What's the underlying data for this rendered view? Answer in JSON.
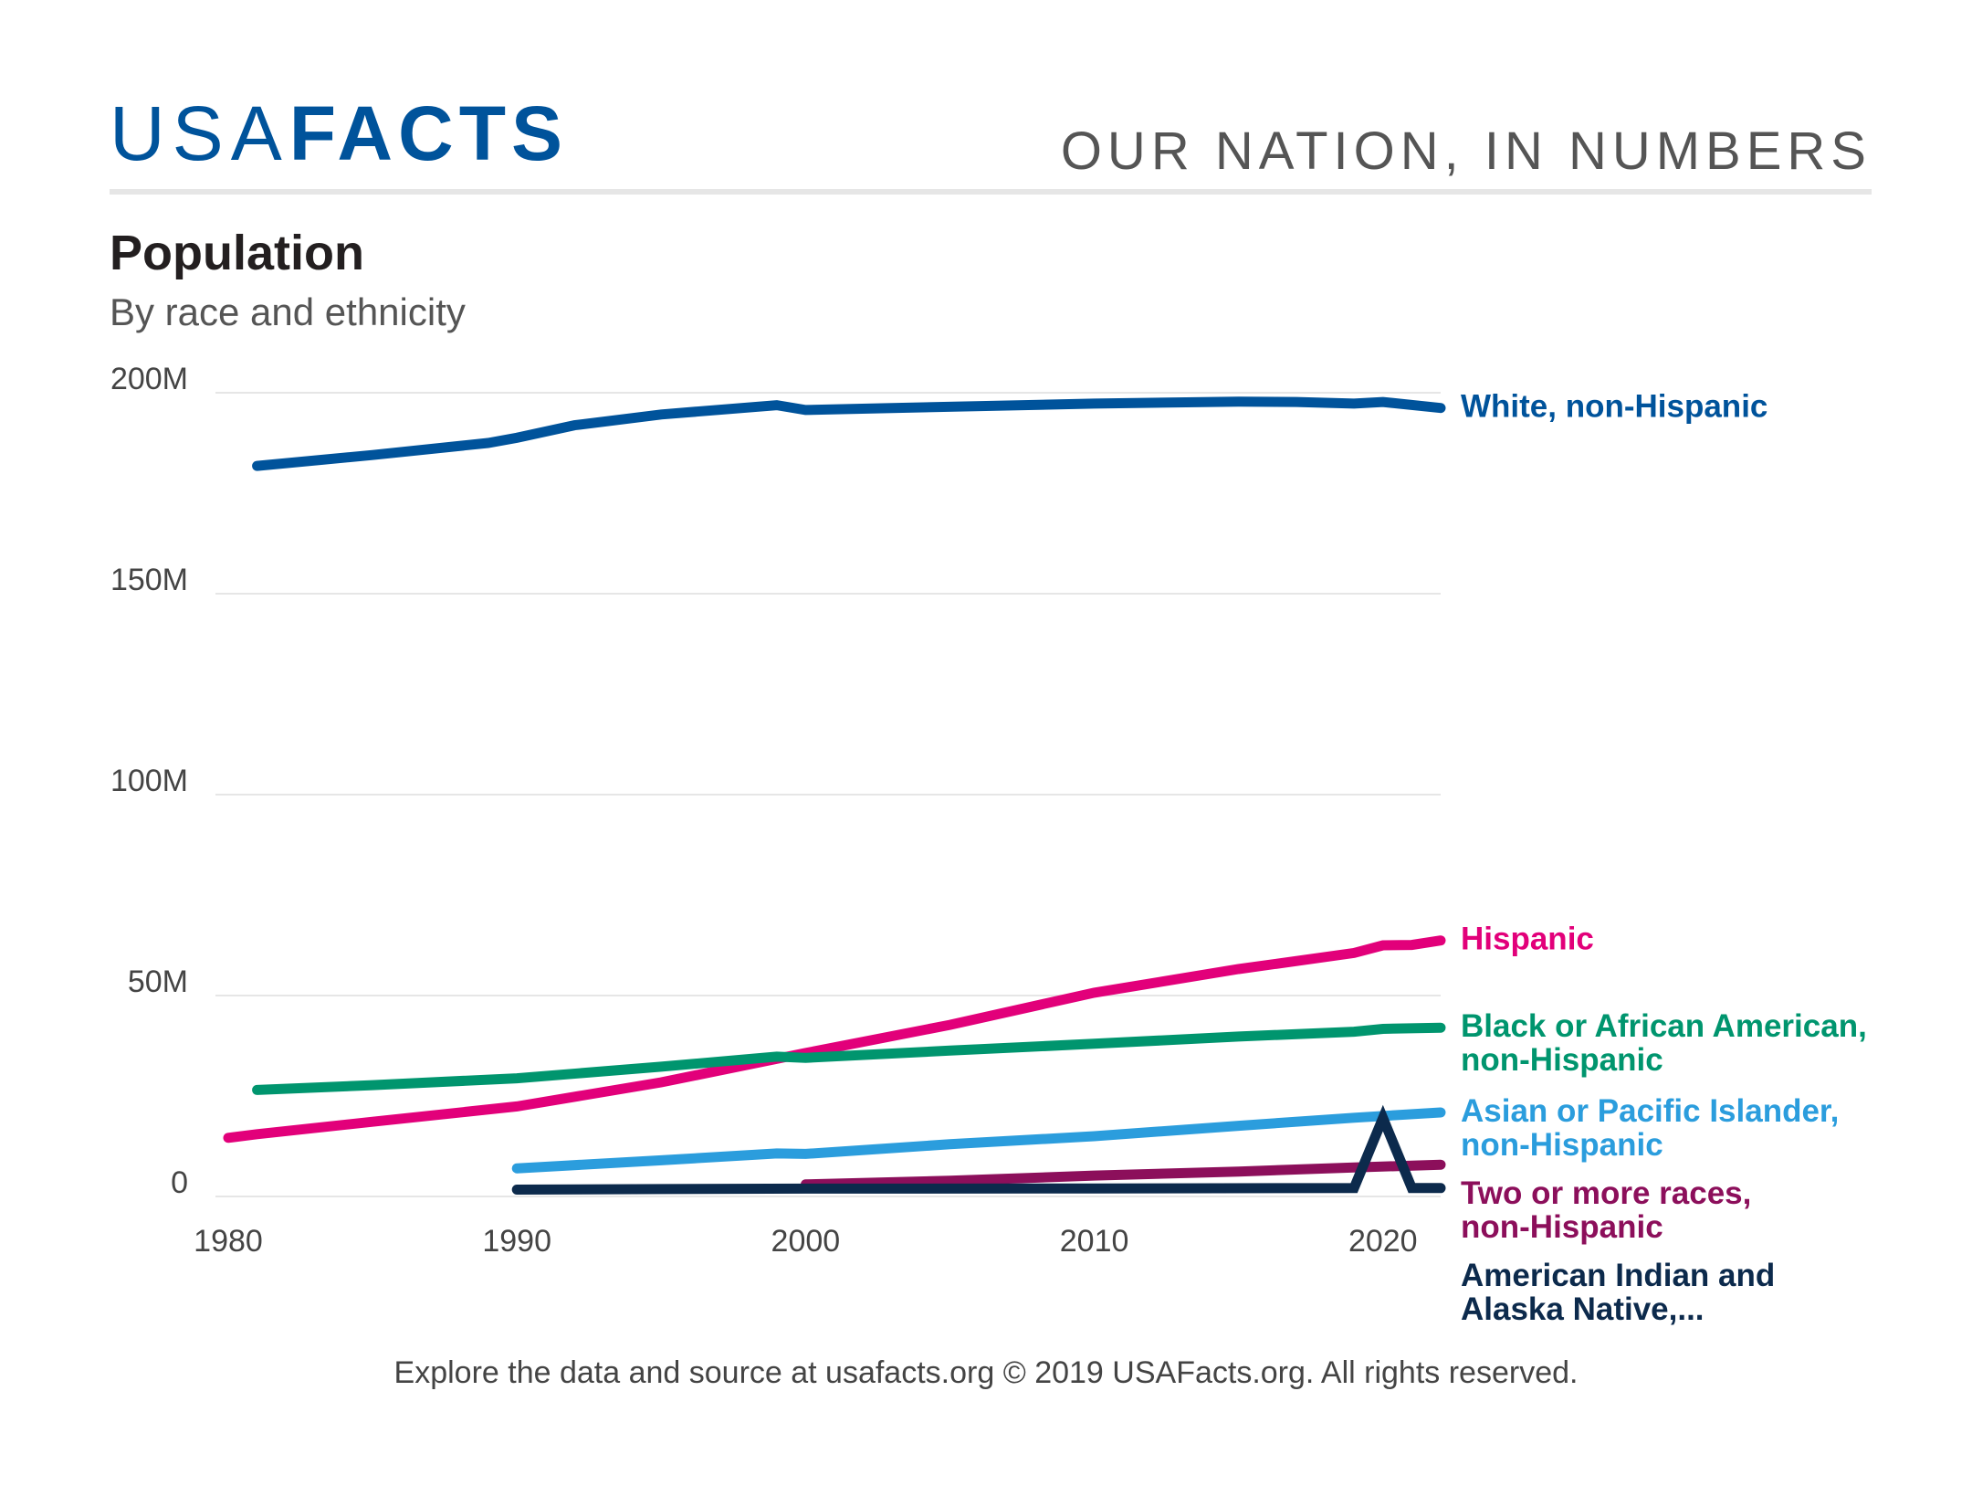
{
  "header": {
    "logo_light": "USA",
    "logo_bold": "FACTS",
    "tagline": "OUR NATION, IN NUMBERS"
  },
  "footer": {
    "text": "Explore the data and source at usafacts.org © 2019 USAFacts.org. All rights reserved."
  },
  "colors": {
    "brand": "#00539b",
    "white_non_hispanic": "#00539b",
    "hispanic": "#e2007a",
    "black": "#00956e",
    "asian": "#2b9ddd",
    "two_or_more": "#8c0f5b",
    "american_indian": "#0c2a4c",
    "grid": "#e6e6e6"
  },
  "chart_data": {
    "type": "line",
    "title": "Population",
    "subtitle": "By race and ethnicity",
    "xlabel": "",
    "ylabel": "",
    "xlim": [
      1980,
      2022
    ],
    "ylim": [
      0,
      200000000
    ],
    "x_ticks": [
      1980,
      1990,
      2000,
      2010,
      2020
    ],
    "x_tick_labels": [
      "1980",
      "1990",
      "2000",
      "2010",
      "2020"
    ],
    "y_ticks": [
      0,
      50000000,
      100000000,
      150000000,
      200000000
    ],
    "y_tick_labels": [
      "0",
      "50M",
      "100M",
      "150M",
      "200M"
    ],
    "grid": "horizontal",
    "legend": "direct labels at right end of lines",
    "series": [
      {
        "name": "White, non-Hispanic",
        "label_lines": [
          "White, non-Hispanic"
        ],
        "color": "#00539b",
        "points": [
          [
            1981,
            181800000
          ],
          [
            1985,
            184500000
          ],
          [
            1989,
            187500000
          ],
          [
            1990,
            188800000
          ],
          [
            1992,
            191900000
          ],
          [
            1995,
            194600000
          ],
          [
            1999,
            196900000
          ],
          [
            2000,
            195700000
          ],
          [
            2003,
            196200000
          ],
          [
            2010,
            197300000
          ],
          [
            2015,
            197800000
          ],
          [
            2017,
            197700000
          ],
          [
            2019,
            197300000
          ],
          [
            2020,
            197700000
          ],
          [
            2022,
            196200000
          ]
        ]
      },
      {
        "name": "Hispanic",
        "label_lines": [
          "Hispanic"
        ],
        "color": "#e2007a",
        "points": [
          [
            1980,
            14600000
          ],
          [
            1981,
            15500000
          ],
          [
            1985,
            18600000
          ],
          [
            1990,
            22400000
          ],
          [
            1995,
            28400000
          ],
          [
            2000,
            35700000
          ],
          [
            2005,
            42700000
          ],
          [
            2010,
            50700000
          ],
          [
            2015,
            56600000
          ],
          [
            2019,
            60600000
          ],
          [
            2020,
            62500000
          ],
          [
            2021,
            62600000
          ],
          [
            2022,
            63700000
          ]
        ]
      },
      {
        "name": "Black or African American, non-Hispanic",
        "label_lines": [
          "Black or African American,",
          "non-Hispanic"
        ],
        "color": "#00956e",
        "points": [
          [
            1981,
            26500000
          ],
          [
            1985,
            27700000
          ],
          [
            1990,
            29400000
          ],
          [
            1995,
            32300000
          ],
          [
            1999,
            34800000
          ],
          [
            2000,
            34500000
          ],
          [
            2005,
            36300000
          ],
          [
            2010,
            38000000
          ],
          [
            2015,
            39800000
          ],
          [
            2019,
            41000000
          ],
          [
            2020,
            41700000
          ],
          [
            2022,
            42000000
          ]
        ]
      },
      {
        "name": "Asian or Pacific Islander, non-Hispanic",
        "label_lines": [
          "Asian or Pacific Islander,",
          "non-Hispanic"
        ],
        "color": "#2b9ddd",
        "points": [
          [
            1990,
            7000000
          ],
          [
            1995,
            9000000
          ],
          [
            1999,
            10700000
          ],
          [
            2000,
            10600000
          ],
          [
            2005,
            13000000
          ],
          [
            2010,
            15000000
          ],
          [
            2015,
            17600000
          ],
          [
            2019,
            19600000
          ],
          [
            2022,
            20900000
          ]
        ]
      },
      {
        "name": "Two or more races, non-Hispanic",
        "label_lines": [
          "Two or more races,",
          "non-Hispanic"
        ],
        "color": "#8c0f5b",
        "points": [
          [
            2000,
            3000000
          ],
          [
            2005,
            3900000
          ],
          [
            2010,
            5200000
          ],
          [
            2015,
            6200000
          ],
          [
            2019,
            7200000
          ],
          [
            2022,
            7900000
          ]
        ]
      },
      {
        "name": "American Indian and Alaska Native,...",
        "label_lines": [
          "American Indian and",
          "Alaska Native,..."
        ],
        "color": "#0c2a4c",
        "points": [
          [
            1990,
            1700000
          ],
          [
            1995,
            1850000
          ],
          [
            2000,
            1950000
          ],
          [
            2010,
            2000000
          ],
          [
            2019,
            2100000
          ],
          [
            2020,
            19500000
          ],
          [
            2021,
            2100000
          ],
          [
            2022,
            2100000
          ]
        ]
      }
    ]
  }
}
